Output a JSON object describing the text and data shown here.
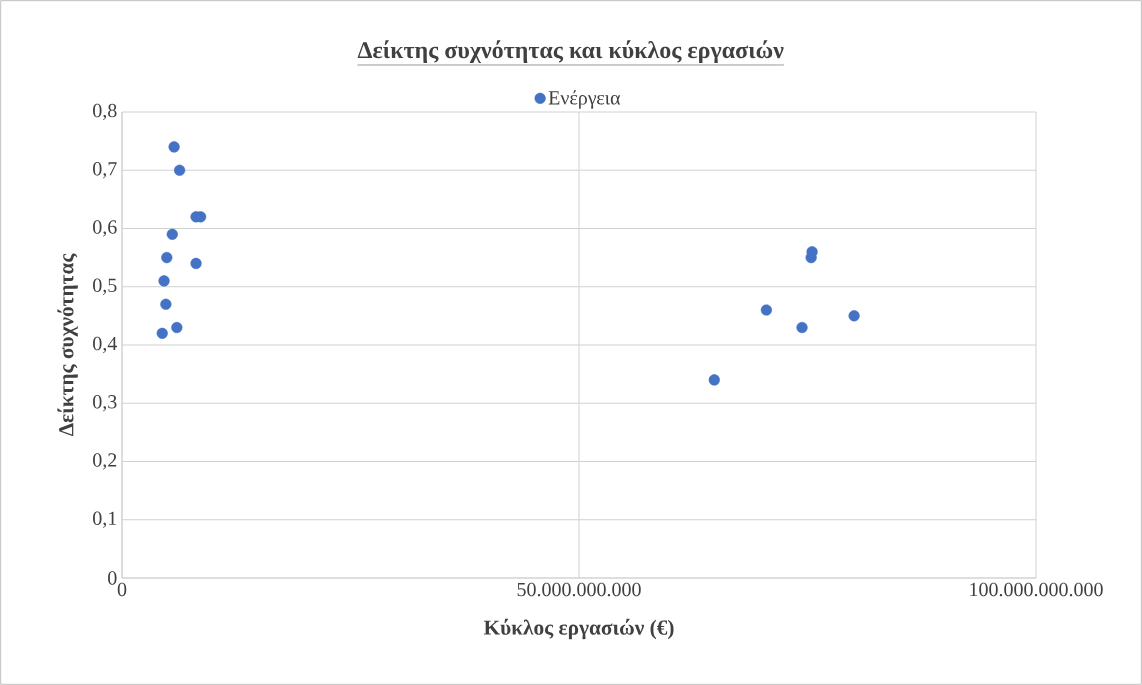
{
  "chart_data": {
    "type": "scatter",
    "title": "Δείκτης συχνότητας και κύκλος εργασιών",
    "xlabel": "Κύκλος εργασιών (€)",
    "ylabel": "Δείκτης συχνότητας",
    "xlim": [
      0,
      100000000000
    ],
    "ylim": [
      0,
      0.8
    ],
    "xticks": [
      0,
      {
        "value": 50000000000,
        "label": "50.000.000.000"
      },
      {
        "value": 100000000000,
        "label": "100.000.000.000"
      }
    ],
    "yticks": [
      0,
      {
        "value": 0.1,
        "label": "0,1"
      },
      {
        "value": 0.2,
        "label": "0,2"
      },
      {
        "value": 0.3,
        "label": "0,3"
      },
      {
        "value": 0.4,
        "label": "0,4"
      },
      {
        "value": 0.5,
        "label": "0,5"
      },
      {
        "value": 0.6,
        "label": "0,6"
      },
      {
        "value": 0.7,
        "label": "0,7"
      },
      {
        "value": 0.8,
        "label": "0,8"
      }
    ],
    "grid": true,
    "legend": "top",
    "marker": "circle",
    "series": [
      {
        "name": "Ενέργεια",
        "color": "#4472c4",
        "x": [
          5700000000,
          6300000000,
          8100000000,
          8600000000,
          5500000000,
          4900000000,
          8100000000,
          4600000000,
          4800000000,
          6000000000,
          4400000000,
          64800000000,
          70500000000,
          74400000000,
          75400000000,
          75500000000,
          80100000000
        ],
        "values": [
          0.74,
          0.7,
          0.62,
          0.62,
          0.59,
          0.55,
          0.54,
          0.51,
          0.47,
          0.43,
          0.42,
          0.34,
          0.46,
          0.43,
          0.55,
          0.56,
          0.45
        ]
      }
    ]
  }
}
